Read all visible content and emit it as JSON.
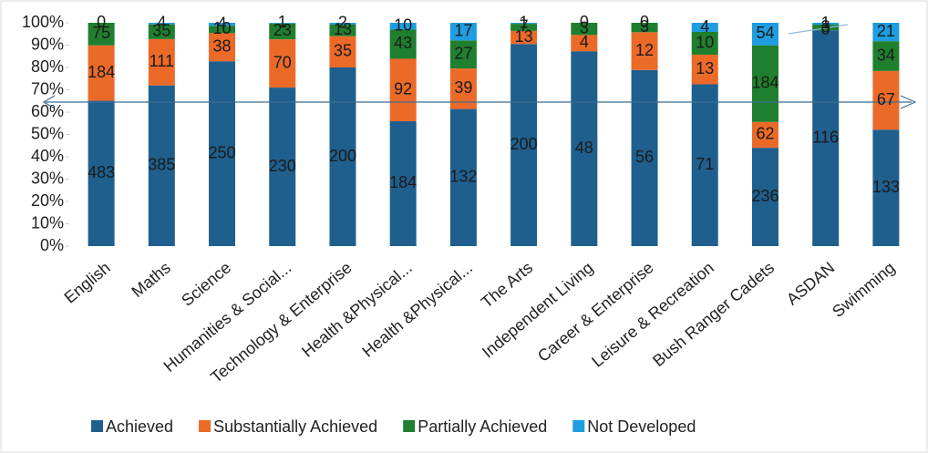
{
  "chart_data": {
    "type": "stacked_bar_100",
    "categories": [
      "English",
      "Maths",
      "Science",
      "Humanities & Social...",
      "Technology & Enterprise",
      "Health &Physical...",
      "Health &Physical...",
      "The Arts",
      "Independent Living",
      "Career & Enterprise",
      "Leisure & Recreation",
      "Bush Ranger Cadets",
      "ASDAN",
      "Swimming"
    ],
    "series": [
      {
        "name": "Achieved",
        "color": "#1f5f8e",
        "values": [
          483,
          385,
          250,
          230,
          200,
          184,
          132,
          200,
          48,
          56,
          71,
          236,
          116,
          133
        ]
      },
      {
        "name": "Substantially Achieved",
        "color": "#ec6a28",
        "values": [
          184,
          111,
          38,
          70,
          35,
          92,
          39,
          13,
          4,
          12,
          13,
          62,
          0,
          67
        ]
      },
      {
        "name": "Partially Achieved",
        "color": "#1f7f2e",
        "values": [
          75,
          35,
          10,
          23,
          13,
          43,
          27,
          7,
          3,
          3,
          10,
          184,
          3,
          34
        ]
      },
      {
        "name": "Not Developed",
        "color": "#1e9ee0",
        "values": [
          0,
          4,
          4,
          1,
          2,
          10,
          17,
          1,
          0,
          0,
          4,
          54,
          1,
          21
        ]
      }
    ],
    "ylim": [
      0,
      100
    ],
    "yticks": [
      {
        "value": 0,
        "label": "0%"
      },
      {
        "value": 10,
        "label": "10%"
      },
      {
        "value": 20,
        "label": "20%"
      },
      {
        "value": 30,
        "label": "30%"
      },
      {
        "value": 40,
        "label": "40%"
      },
      {
        "value": 50,
        "label": "50%"
      },
      {
        "value": 60,
        "label": "60%"
      },
      {
        "value": 70,
        "label": "70%"
      },
      {
        "value": 80,
        "label": "80%"
      },
      {
        "value": 90,
        "label": "90%"
      },
      {
        "value": 100,
        "label": "100%"
      }
    ],
    "legend": "bottom"
  }
}
